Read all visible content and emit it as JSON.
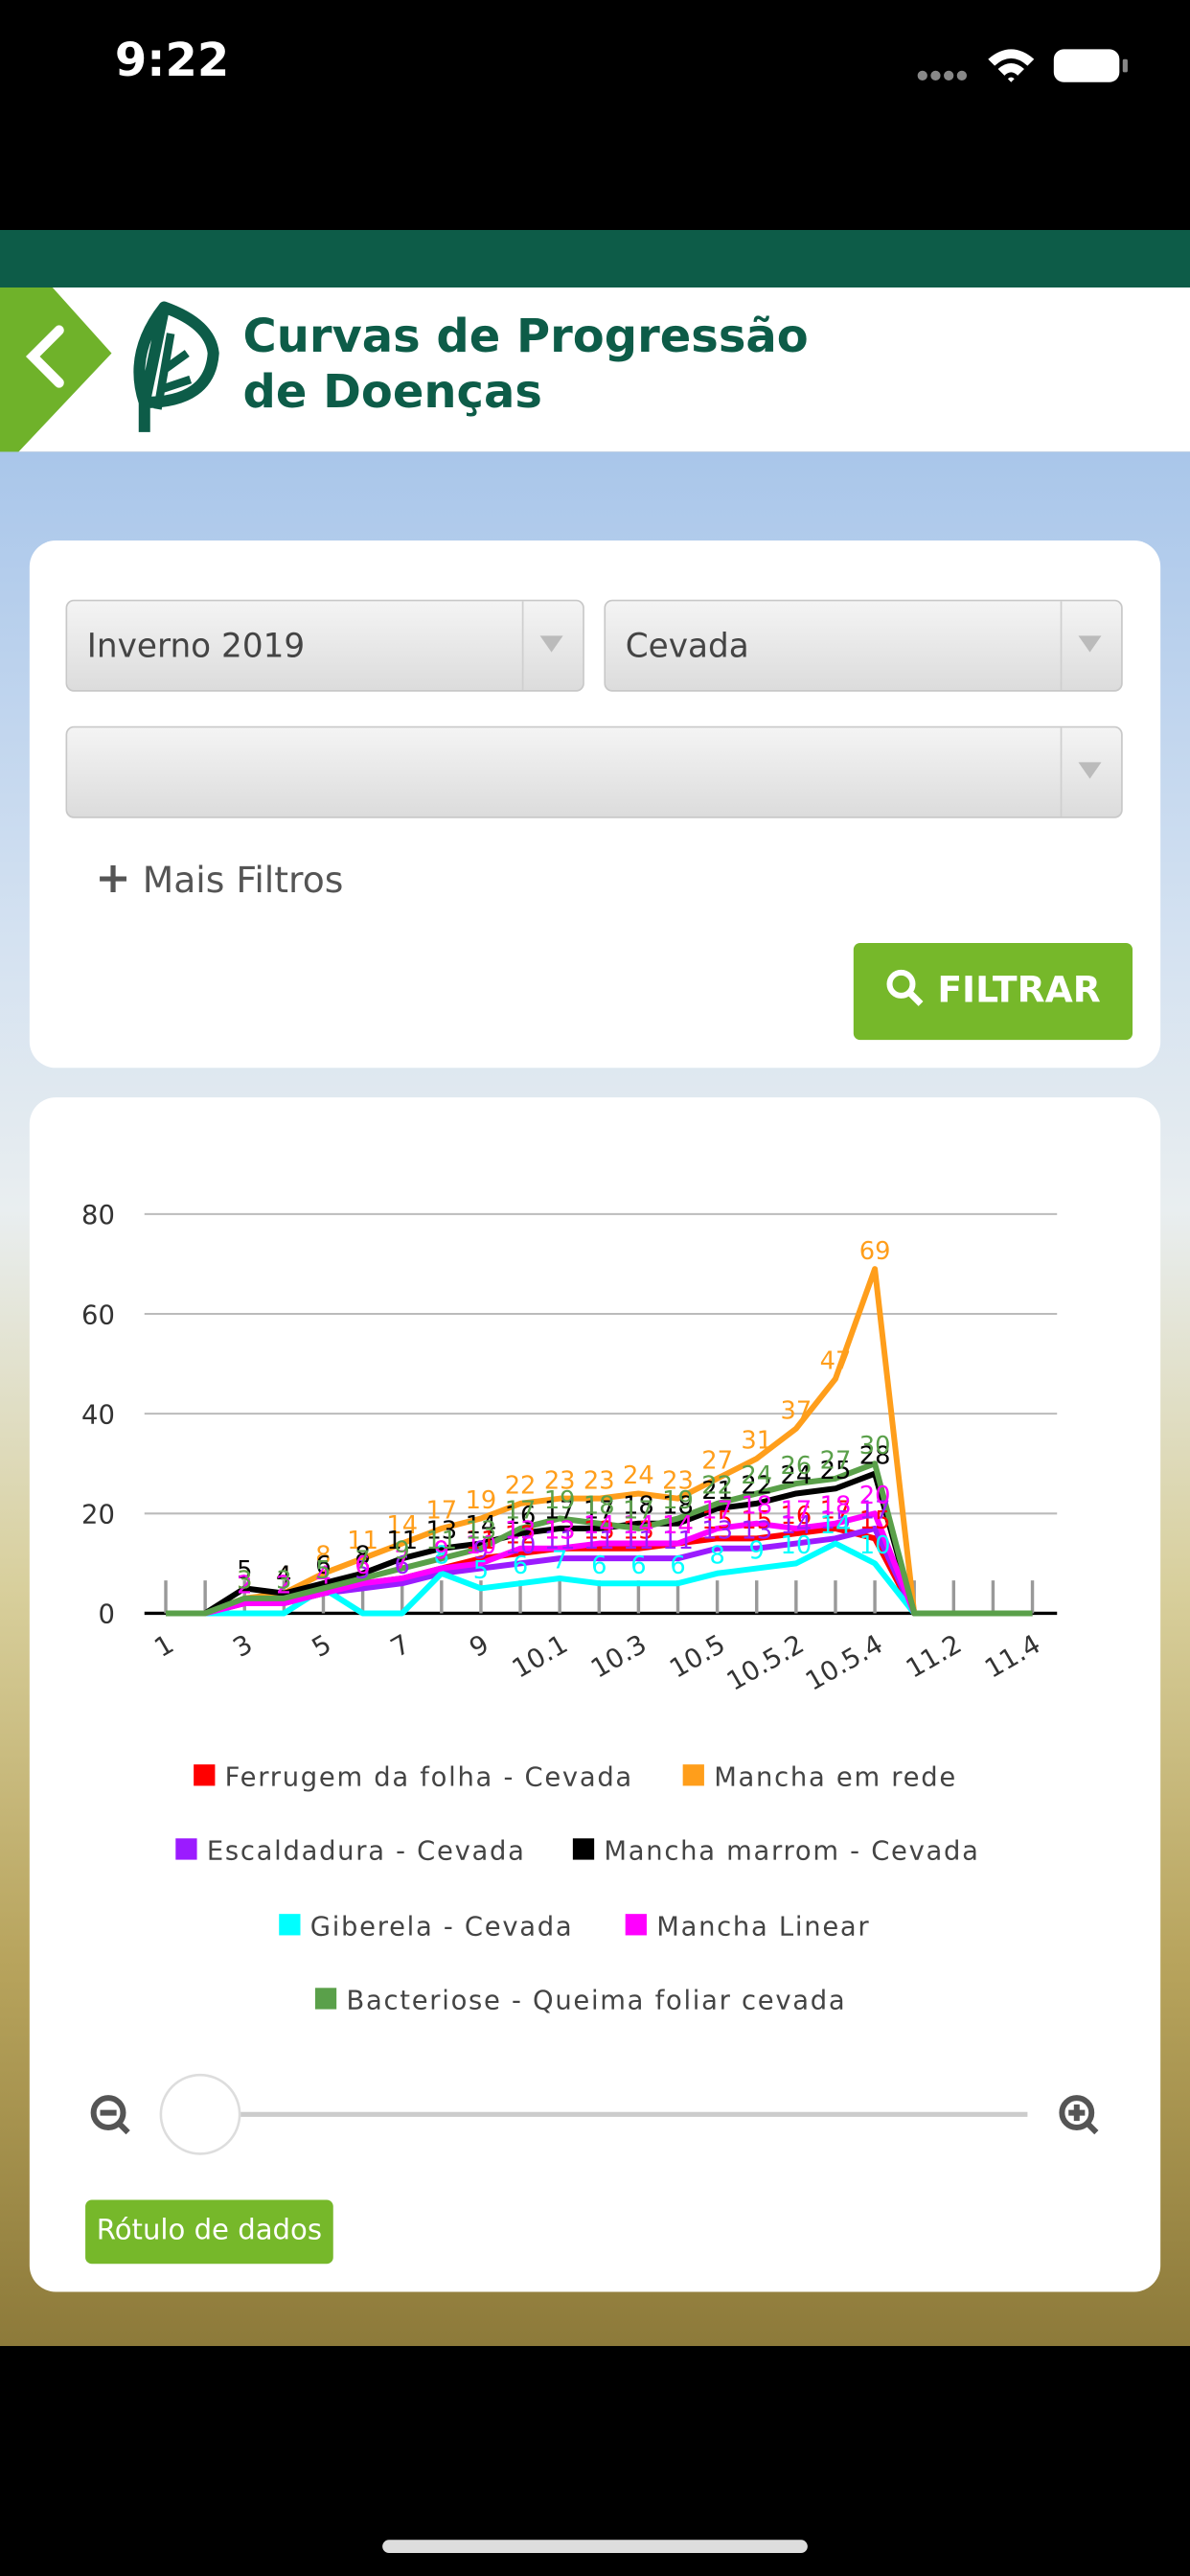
{
  "status_bar": {
    "time": "9:22"
  },
  "header": {
    "title_lines": [
      "Curvas de Progressão",
      "de Doenças"
    ]
  },
  "filters": {
    "season": "Inverno 2019",
    "crop": "Cevada",
    "more_filters": "Mais Filtros",
    "button": "FILTRAR"
  },
  "chart_data": {
    "type": "line",
    "categories": [
      "1",
      null,
      "3",
      null,
      "5",
      null,
      "7",
      null,
      "9",
      null,
      "10.1",
      null,
      "10.3",
      null,
      "10.5",
      null,
      "10.5.2",
      null,
      "10.5.4",
      null,
      "11.2",
      null,
      "11.4"
    ],
    "ylim": [
      0,
      80
    ],
    "yticks": [
      0,
      20,
      40,
      60,
      80
    ],
    "grid": true,
    "data_labels": true,
    "series": [
      {
        "name": "Ferrugem da folha - Cevada",
        "color": "#ff0000",
        "values": [
          0,
          0,
          2,
          2,
          4,
          6,
          7,
          9,
          11,
          12,
          13,
          13,
          13,
          14,
          15,
          15,
          16,
          17,
          15,
          0,
          0,
          0,
          0
        ]
      },
      {
        "name": "Mancha em rede",
        "color": "#ff9e1b",
        "values": [
          0,
          0,
          3,
          4,
          8,
          11,
          14,
          17,
          19,
          22,
          23,
          23,
          24,
          23,
          27,
          31,
          37,
          47,
          69,
          0,
          0,
          0,
          0
        ]
      },
      {
        "name": "Escaldadura - Cevada",
        "color": "#9b1bff",
        "values": [
          0,
          0,
          2,
          2,
          4,
          5,
          6,
          8,
          9,
          10,
          11,
          11,
          11,
          11,
          13,
          13,
          14,
          15,
          17,
          0,
          0,
          0,
          0
        ]
      },
      {
        "name": "Mancha marrom - Cevada",
        "color": "#000000",
        "values": [
          0,
          0,
          5,
          4,
          6,
          8,
          11,
          13,
          14,
          16,
          17,
          17,
          18,
          18,
          21,
          22,
          24,
          25,
          28,
          0,
          0,
          0,
          0
        ]
      },
      {
        "name": "Giberela - Cevada",
        "color": "#00ffff",
        "values": [
          0,
          0,
          0,
          0,
          5,
          0,
          0,
          8,
          5,
          6,
          7,
          6,
          6,
          6,
          8,
          9,
          10,
          14,
          10,
          0,
          0,
          0,
          0
        ]
      },
      {
        "name": "Mancha Linear",
        "color": "#ff00ff",
        "values": [
          0,
          0,
          2,
          2,
          4,
          6,
          7,
          9,
          10,
          13,
          13,
          14,
          14,
          14,
          17,
          18,
          17,
          18,
          20,
          0,
          0,
          0,
          0
        ]
      },
      {
        "name": "Bacteriose - Queima foliar cevada",
        "color": "#5aa04a",
        "values": [
          0,
          0,
          3,
          3,
          5,
          7,
          9,
          11,
          13,
          17,
          19,
          18,
          17,
          19,
          22,
          24,
          26,
          27,
          30,
          0,
          0,
          0,
          0
        ]
      }
    ]
  },
  "data_labels_button": "Rótulo de dados"
}
